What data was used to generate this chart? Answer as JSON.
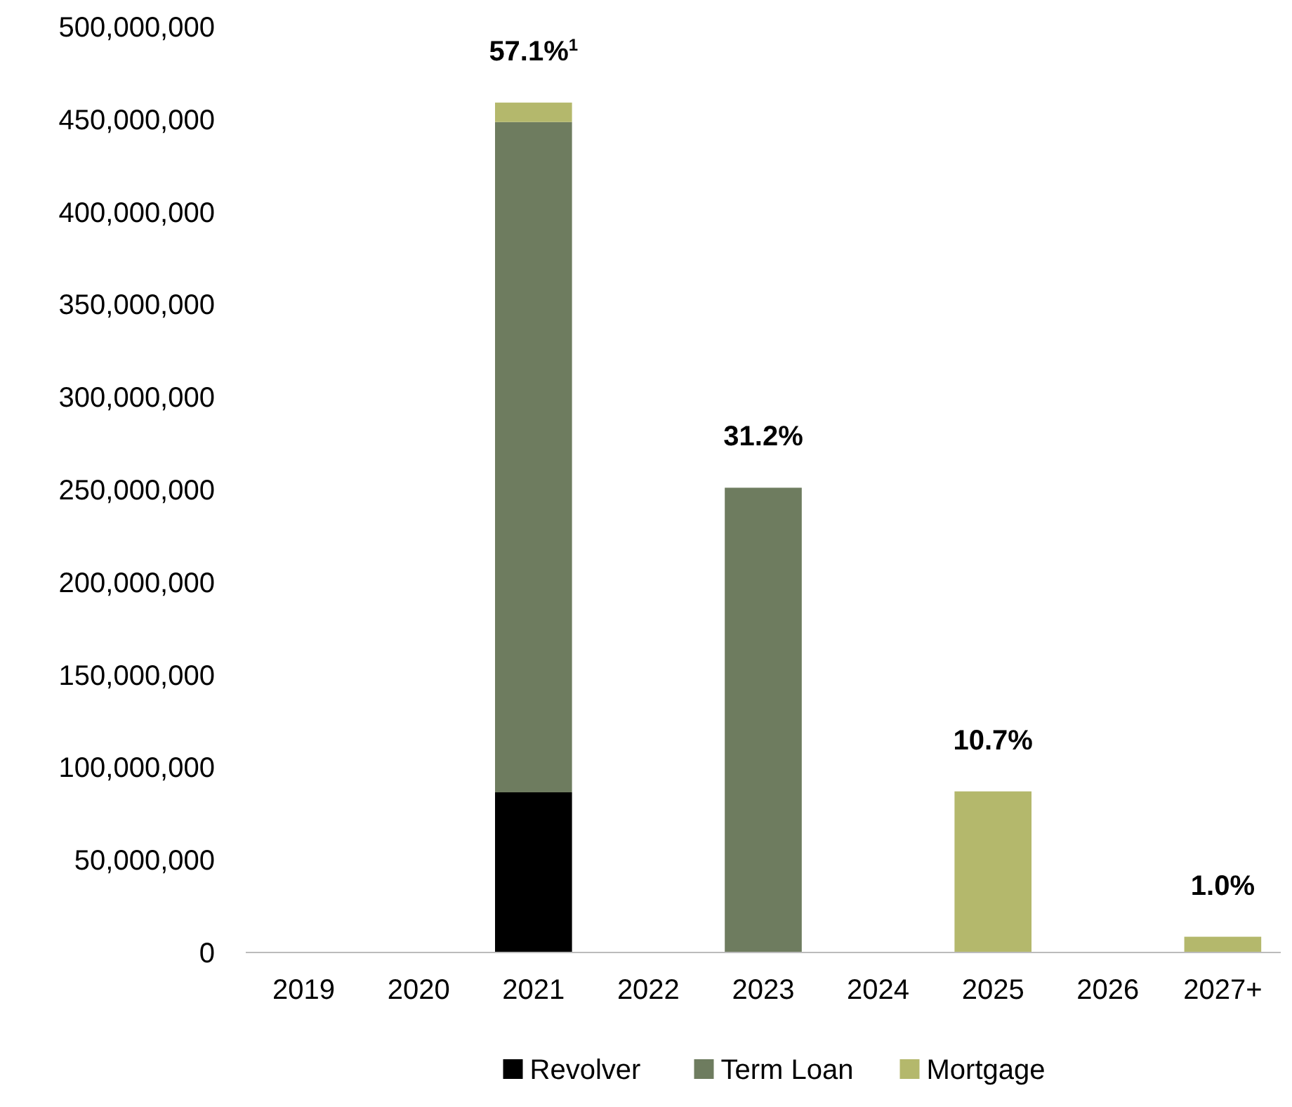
{
  "chart_data": {
    "type": "bar",
    "stacked": true,
    "categories": [
      "2019",
      "2020",
      "2021",
      "2022",
      "2023",
      "2024",
      "2025",
      "2026",
      "2027+"
    ],
    "series": [
      {
        "name": "Revolver",
        "color": "#000000",
        "values": [
          0,
          0,
          86500000,
          0,
          0,
          0,
          0,
          0,
          0
        ]
      },
      {
        "name": "Term Loan",
        "color": "#6e7c5f",
        "values": [
          0,
          0,
          362000000,
          0,
          251000000,
          0,
          0,
          0,
          0
        ]
      },
      {
        "name": "Mortgage",
        "color": "#b4b86c",
        "values": [
          0,
          0,
          10500000,
          0,
          0,
          0,
          87000000,
          0,
          8500000
        ]
      }
    ],
    "annotations": [
      {
        "text": "57.1%$^{1}$",
        "x": "2021",
        "y": 459000000
      },
      {
        "text": "31.2%",
        "x": "2023",
        "y": 251000000
      },
      {
        "text": "10.7%",
        "x": "2025",
        "y": 87000000
      },
      {
        "text": "1.0%",
        "x": "2027+",
        "y": 8500000
      }
    ],
    "ylim": [
      0,
      500000000
    ],
    "yticks": [
      {
        "value": 0,
        "label": "0"
      },
      {
        "value": 50000000,
        "label": "50,000,000"
      },
      {
        "value": 100000000,
        "label": "100,000,000"
      },
      {
        "value": 150000000,
        "label": "150,000,000"
      },
      {
        "value": 200000000,
        "label": "200,000,000"
      },
      {
        "value": 250000000,
        "label": "250,000,000"
      },
      {
        "value": 300000000,
        "label": "300,000,000"
      },
      {
        "value": 350000000,
        "label": "350,000,000"
      },
      {
        "value": 400000000,
        "label": "400,000,000"
      },
      {
        "value": 450000000,
        "label": "450,000,000"
      },
      {
        "value": 500000000,
        "label": "500,000,000"
      }
    ],
    "legend": "bottom",
    "grid": false
  }
}
